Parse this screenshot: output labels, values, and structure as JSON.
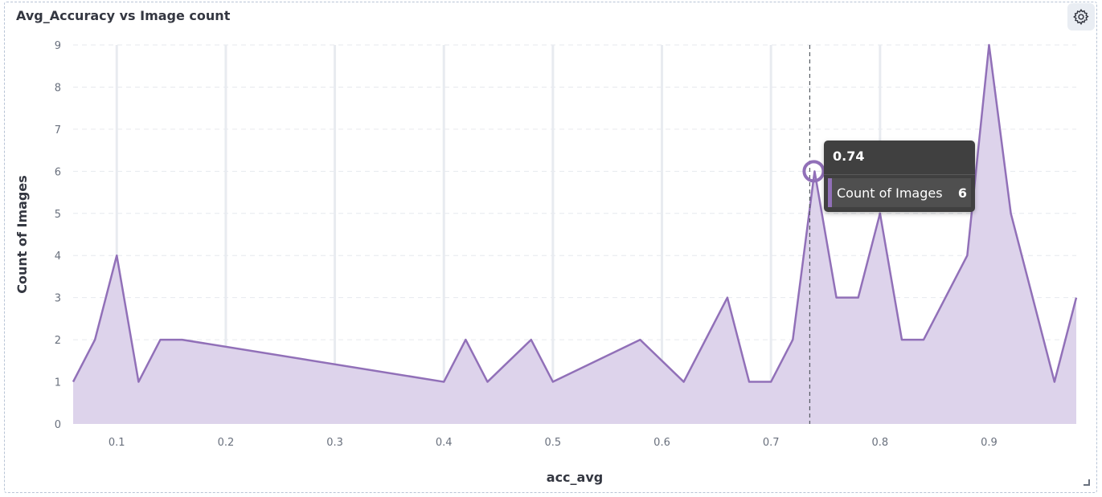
{
  "panel": {
    "title": "Avg_Accuracy vs Image count",
    "settings_icon": "gear-icon"
  },
  "tooltip": {
    "x_label": "0.74",
    "series_label": "Count of Images",
    "value": "6",
    "color": "#9170b8"
  },
  "chart_data": {
    "type": "area",
    "title": "Avg_Accuracy vs Image count",
    "xlabel": "acc_avg",
    "ylabel": "Count of Images",
    "xlim": [
      0.06,
      0.98
    ],
    "ylim": [
      0,
      9
    ],
    "xticks": [
      0.1,
      0.2,
      0.3,
      0.4,
      0.5,
      0.6,
      0.7,
      0.8,
      0.9
    ],
    "yticks": [
      0,
      1,
      2,
      3,
      4,
      5,
      6,
      7,
      8,
      9
    ],
    "xtick_labels": [
      "0.1",
      "0.2",
      "0.3",
      "0.4",
      "0.5",
      "0.6",
      "0.7",
      "0.8",
      "0.9"
    ],
    "ytick_labels": [
      "0",
      "1",
      "2",
      "3",
      "4",
      "5",
      "6",
      "7",
      "8",
      "9"
    ],
    "grid": true,
    "color": "#9170b8",
    "fill_color": "#ddd3eb",
    "highlight": {
      "x": 0.74,
      "y": 6
    },
    "series": [
      {
        "name": "Count of Images",
        "x": [
          0.06,
          0.08,
          0.1,
          0.12,
          0.14,
          0.16,
          0.4,
          0.42,
          0.44,
          0.48,
          0.5,
          0.58,
          0.62,
          0.66,
          0.68,
          0.7,
          0.72,
          0.74,
          0.76,
          0.78,
          0.8,
          0.82,
          0.84,
          0.88,
          0.9,
          0.92,
          0.96,
          0.98
        ],
        "y": [
          1,
          2,
          4,
          1,
          2,
          2,
          1,
          2,
          1,
          2,
          1,
          2,
          1,
          3,
          1,
          1,
          2,
          6,
          3,
          3,
          5,
          2,
          2,
          4,
          9,
          5,
          1,
          3
        ]
      }
    ]
  }
}
